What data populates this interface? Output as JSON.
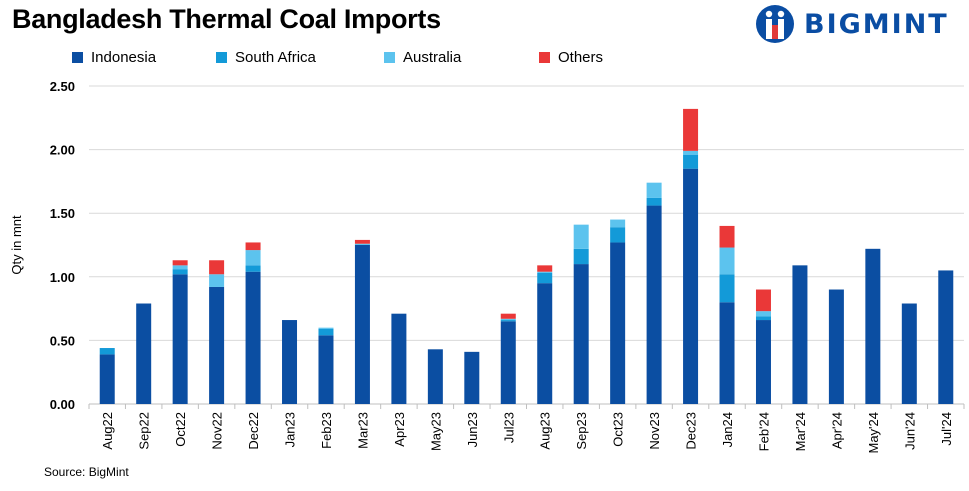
{
  "title": "Bangladesh Thermal Coal Imports",
  "brand": {
    "name": "BIGMINT",
    "logo_icon": "bigmint-logo-icon",
    "color": "#0a4da3",
    "accent": "#e03a3a"
  },
  "source": "Source: BigMint",
  "colors": {
    "Indonesia": "#0b4ea2",
    "South Africa": "#139ad8",
    "Australia": "#5cc3ee",
    "Others": "#ea3838"
  },
  "chart_data": {
    "type": "bar",
    "stacked": true,
    "title": "Bangladesh Thermal Coal Imports",
    "xlabel": "",
    "ylabel": "Qty in mnt",
    "ylim": [
      0,
      2.5
    ],
    "yticks": [
      "0.00",
      "0.50",
      "1.00",
      "1.50",
      "2.00",
      "2.50"
    ],
    "grid": true,
    "legend": "top-left",
    "categories": [
      "Aug22",
      "Sep22",
      "Oct22",
      "Nov22",
      "Dec22",
      "Jan23",
      "Feb23",
      "Mar23",
      "Apr23",
      "May23",
      "Jun23",
      "Jul23",
      "Aug23",
      "Sep23",
      "Oct23",
      "Nov23",
      "Dec23",
      "Jan24",
      "Feb'24",
      "Mar'24",
      "Apr'24",
      "May'24",
      "Jun'24",
      "Jul'24"
    ],
    "series": [
      {
        "name": "Indonesia",
        "values": [
          0.39,
          0.79,
          1.02,
          0.92,
          1.04,
          0.66,
          0.54,
          1.25,
          0.71,
          0.43,
          0.41,
          0.65,
          0.95,
          1.1,
          1.27,
          1.56,
          1.85,
          0.8,
          0.66,
          1.09,
          0.9,
          1.22,
          0.79,
          1.05
        ]
      },
      {
        "name": "South Africa",
        "values": [
          0.05,
          0,
          0.04,
          0,
          0.05,
          0,
          0.05,
          0,
          0,
          0,
          0,
          0.01,
          0.08,
          0.12,
          0.12,
          0.06,
          0.11,
          0.22,
          0.03,
          0,
          0,
          0,
          0,
          0
        ]
      },
      {
        "name": "Australia",
        "values": [
          0,
          0,
          0.03,
          0.1,
          0.12,
          0,
          0.01,
          0.01,
          0,
          0,
          0,
          0.01,
          0.01,
          0.19,
          0.06,
          0.12,
          0.03,
          0.21,
          0.04,
          0,
          0,
          0,
          0,
          0
        ]
      },
      {
        "name": "Others",
        "values": [
          0,
          0,
          0.04,
          0.11,
          0.06,
          0,
          0,
          0.03,
          0,
          0,
          0,
          0.04,
          0.05,
          0,
          0,
          0,
          0.33,
          0.17,
          0.17,
          0,
          0,
          0,
          0,
          0
        ]
      }
    ]
  }
}
